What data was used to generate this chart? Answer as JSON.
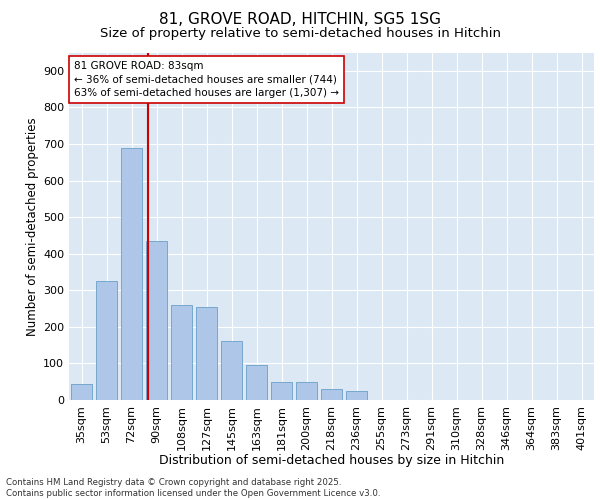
{
  "title1": "81, GROVE ROAD, HITCHIN, SG5 1SG",
  "title2": "Size of property relative to semi-detached houses in Hitchin",
  "xlabel": "Distribution of semi-detached houses by size in Hitchin",
  "ylabel": "Number of semi-detached properties",
  "bar_color": "#aec6e8",
  "bar_edge_color": "#6b9fc8",
  "bg_color": "#dce9f5",
  "categories": [
    "35sqm",
    "53sqm",
    "72sqm",
    "90sqm",
    "108sqm",
    "127sqm",
    "145sqm",
    "163sqm",
    "181sqm",
    "200sqm",
    "218sqm",
    "236sqm",
    "255sqm",
    "273sqm",
    "291sqm",
    "310sqm",
    "328sqm",
    "346sqm",
    "364sqm",
    "383sqm",
    "401sqm"
  ],
  "values": [
    45,
    325,
    690,
    435,
    260,
    255,
    160,
    95,
    50,
    50,
    30,
    25,
    0,
    0,
    0,
    0,
    0,
    0,
    0,
    0,
    0
  ],
  "vline_pos": 2.67,
  "vline_color": "#cc0000",
  "annotation_text": "81 GROVE ROAD: 83sqm\n← 36% of semi-detached houses are smaller (744)\n63% of semi-detached houses are larger (1,307) →",
  "ylim": [
    0,
    950
  ],
  "yticks": [
    0,
    100,
    200,
    300,
    400,
    500,
    600,
    700,
    800,
    900
  ],
  "footer": "Contains HM Land Registry data © Crown copyright and database right 2025.\nContains public sector information licensed under the Open Government Licence v3.0.",
  "title1_fontsize": 11,
  "title2_fontsize": 9.5,
  "xlabel_fontsize": 9,
  "ylabel_fontsize": 8.5,
  "tick_fontsize": 8,
  "annot_fontsize": 7.5
}
